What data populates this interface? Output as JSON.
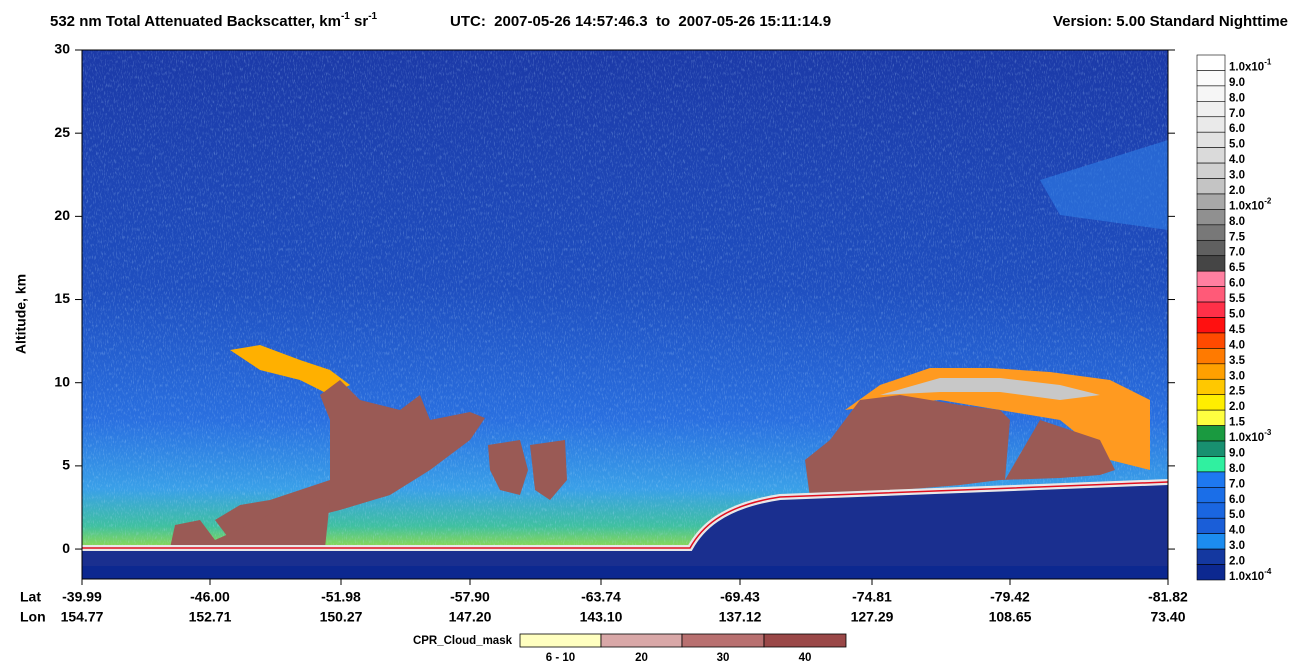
{
  "chart_data": {
    "type": "curtain",
    "title": [
      "532 nm Total Attenuated Backscatter, km",
      "-1",
      " sr",
      "-1"
    ],
    "subtitle": "UTC:  2007-05-26 14:57:46.3  to  2007-05-26 15:11:14.9",
    "version": "Version: 5.00  Standard  Nighttime",
    "ylabel": "Altitude, km",
    "ylim": [
      -1.8,
      30
    ],
    "yticks": [
      0,
      5,
      10,
      15,
      20,
      25,
      30
    ],
    "x_rows": [
      "Lat",
      "Lon"
    ],
    "lat": [
      "-39.99",
      "-46.00",
      "-51.98",
      "-57.90",
      "-63.74",
      "-69.43",
      "-74.81",
      "-79.42",
      "-81.82"
    ],
    "lon": [
      "154.77",
      "152.71",
      "150.27",
      "147.20",
      "143.10",
      "137.12",
      "127.29",
      "108.65",
      "73.40"
    ],
    "colorbar": [
      {
        "label": "1.0x10",
        "exp": "-1",
        "color": "#ffffff"
      },
      {
        "label": "9.0",
        "color": "#fbfbfb"
      },
      {
        "label": "8.0",
        "color": "#f6f6f6"
      },
      {
        "label": "7.0",
        "color": "#f0f0f0"
      },
      {
        "label": "6.0",
        "color": "#eaeaea"
      },
      {
        "label": "5.0",
        "color": "#e2e2e2"
      },
      {
        "label": "4.0",
        "color": "#dadada"
      },
      {
        "label": "3.0",
        "color": "#d0d0d0"
      },
      {
        "label": "2.0",
        "color": "#c4c4c4"
      },
      {
        "label": "1.0x10",
        "exp": "-2",
        "color": "#a8a8a8"
      },
      {
        "label": "8.0",
        "color": "#909090"
      },
      {
        "label": "7.5",
        "color": "#787878"
      },
      {
        "label": "7.0",
        "color": "#606060"
      },
      {
        "label": "6.5",
        "color": "#454545"
      },
      {
        "label": "6.0",
        "color": "#ff7fa0"
      },
      {
        "label": "5.5",
        "color": "#ff5a78"
      },
      {
        "label": "5.0",
        "color": "#ff3048"
      },
      {
        "label": "4.5",
        "color": "#ff1010"
      },
      {
        "label": "4.0",
        "color": "#ff4a00"
      },
      {
        "label": "3.5",
        "color": "#ff7a00"
      },
      {
        "label": "3.0",
        "color": "#ffa000"
      },
      {
        "label": "2.5",
        "color": "#ffc800"
      },
      {
        "label": "2.0",
        "color": "#ffee00"
      },
      {
        "label": "1.5",
        "color": "#ffff40"
      },
      {
        "label": "1.0x10",
        "exp": "-3",
        "color": "#1a9a40"
      },
      {
        "label": "9.0",
        "color": "#189070"
      },
      {
        "label": "8.0",
        "color": "#30f0a0"
      },
      {
        "label": "7.0",
        "color": "#1e78f0"
      },
      {
        "label": "6.0",
        "color": "#1a6ee8"
      },
      {
        "label": "5.0",
        "color": "#1a66e0"
      },
      {
        "label": "4.0",
        "color": "#1a5ed8"
      },
      {
        "label": "3.0",
        "color": "#1c8cf0"
      },
      {
        "label": "2.0",
        "color": "#1438a0"
      },
      {
        "label": "1.0x10",
        "exp": "-4",
        "color": "#0c2890"
      }
    ],
    "cpr_legend": {
      "title": "CPR_Cloud_mask",
      "items": [
        {
          "label": "6 - 10",
          "color": "#ffffc0"
        },
        {
          "label": "20",
          "color": "#d9a8a8"
        },
        {
          "label": "30",
          "color": "#b87070"
        },
        {
          "label": "40",
          "color": "#9a4848"
        }
      ]
    }
  }
}
